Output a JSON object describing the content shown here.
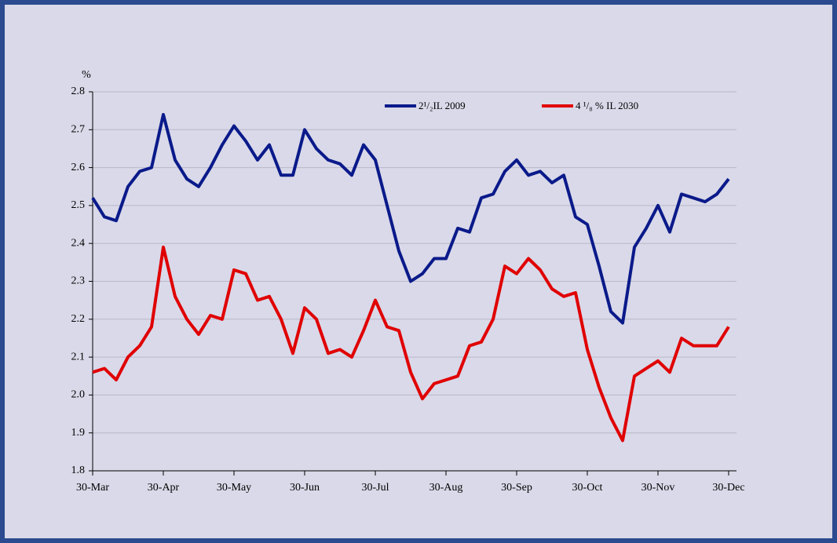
{
  "chart_data": {
    "type": "line",
    "y_label": "%",
    "categories": [
      "30-Mar",
      null,
      null,
      null,
      null,
      null,
      "30-Apr",
      null,
      null,
      null,
      null,
      null,
      "30-May",
      null,
      null,
      null,
      null,
      null,
      "30-Jun",
      null,
      null,
      null,
      null,
      null,
      "30-Jul",
      null,
      null,
      null,
      null,
      null,
      "30-Aug",
      null,
      null,
      null,
      null,
      null,
      "30-Sep",
      null,
      null,
      null,
      null,
      null,
      "30-Oct",
      null,
      null,
      null,
      null,
      null,
      "30-Nov",
      null,
      null,
      null,
      null,
      null,
      "30-Dec"
    ],
    "series": [
      {
        "name": "2¹/₂IL 2009",
        "color": "#0a1a8a",
        "values": [
          2.52,
          2.47,
          2.46,
          2.55,
          2.59,
          2.6,
          2.74,
          2.62,
          2.57,
          2.55,
          2.6,
          2.66,
          2.71,
          2.67,
          2.62,
          2.66,
          2.58,
          2.58,
          2.7,
          2.65,
          2.62,
          2.61,
          2.58,
          2.66,
          2.62,
          2.5,
          2.38,
          2.3,
          2.32,
          2.36,
          2.36,
          2.44,
          2.43,
          2.52,
          2.53,
          2.59,
          2.62,
          2.58,
          2.59,
          2.56,
          2.58,
          2.47,
          2.45,
          2.34,
          2.22,
          2.19,
          2.39,
          2.44,
          2.5,
          2.43,
          2.53,
          2.52,
          2.51,
          2.53,
          2.57
        ]
      },
      {
        "name": "4 ¹/₈ % IL  2030",
        "color": "#e00000",
        "values": [
          2.06,
          2.07,
          2.04,
          2.1,
          2.13,
          2.18,
          2.39,
          2.26,
          2.2,
          2.16,
          2.21,
          2.2,
          2.33,
          2.32,
          2.25,
          2.26,
          2.2,
          2.11,
          2.23,
          2.2,
          2.11,
          2.12,
          2.1,
          2.17,
          2.25,
          2.18,
          2.17,
          2.06,
          1.99,
          2.03,
          2.04,
          2.05,
          2.13,
          2.14,
          2.2,
          2.34,
          2.32,
          2.36,
          2.33,
          2.28,
          2.26,
          2.27,
          2.12,
          2.02,
          1.94,
          1.88,
          2.05,
          2.07,
          2.09,
          2.06,
          2.15,
          2.13,
          2.13,
          2.13,
          2.18
        ]
      }
    ],
    "ylim": [
      1.8,
      2.8
    ],
    "yticks": [
      1.8,
      1.9,
      {
        "value": 2.0,
        "label": "2.0"
      },
      2.1,
      2.2,
      2.3,
      2.4,
      2.5,
      2.6,
      2.7,
      2.8
    ],
    "grid": true
  }
}
